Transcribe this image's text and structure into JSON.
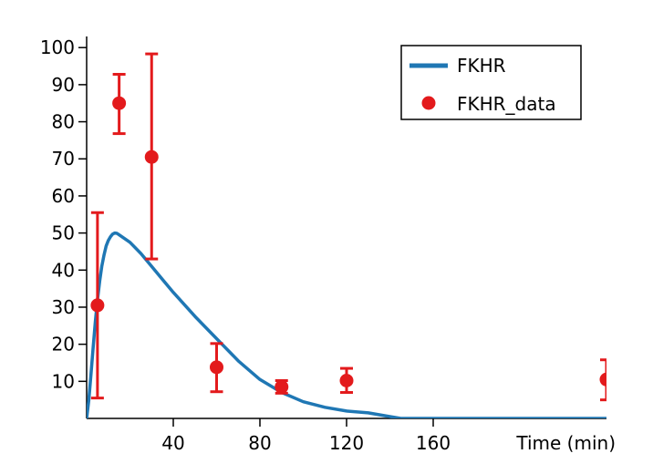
{
  "chart_data": {
    "type": "line",
    "xlabel": "Time (min)",
    "ylabel": "",
    "xlim": [
      0,
      240
    ],
    "ylim": [
      0,
      103
    ],
    "x_ticks": [
      40,
      80,
      120,
      160
    ],
    "y_ticks": [
      10,
      20,
      30,
      40,
      50,
      60,
      70,
      80,
      90,
      100
    ],
    "grid": false,
    "legend_position": "top-right",
    "series": [
      {
        "name": "FKHR",
        "kind": "line",
        "color": "#1f77b4",
        "x": [
          0,
          1,
          2,
          3,
          4,
          5,
          6,
          7,
          8,
          9,
          10,
          11,
          12,
          13,
          14,
          15,
          20,
          25,
          30,
          35,
          40,
          50,
          60,
          70,
          80,
          90,
          100,
          110,
          120,
          130,
          140,
          145,
          150,
          160,
          180,
          200,
          220,
          240
        ],
        "y": [
          0,
          5,
          12,
          19,
          26,
          32,
          37,
          41,
          44,
          46.5,
          48,
          49,
          49.7,
          50,
          49.9,
          49.5,
          47.5,
          44.5,
          41,
          37.5,
          34,
          27.5,
          21.5,
          15.5,
          10.5,
          7,
          4.5,
          3,
          2,
          1.5,
          0.5,
          0,
          0,
          0,
          0,
          0,
          0,
          0
        ]
      },
      {
        "name": "FKHR_data",
        "kind": "scatter",
        "color": "#e31a1c",
        "x": [
          5,
          15,
          30,
          60,
          90,
          120,
          240
        ],
        "y": [
          30.5,
          85,
          70.5,
          13.8,
          8.5,
          10.2,
          10.5
        ],
        "err_low": [
          5.5,
          76.8,
          43,
          7.2,
          6.8,
          7,
          5
        ],
        "err_high": [
          55.5,
          92.8,
          98.3,
          20.2,
          10.2,
          13.5,
          15.8
        ]
      }
    ]
  }
}
